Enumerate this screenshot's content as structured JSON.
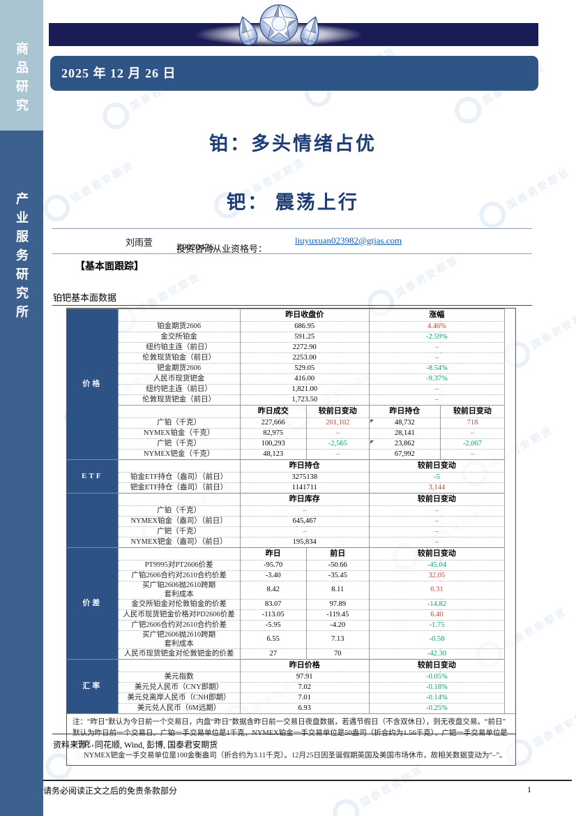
{
  "sidebar": {
    "top_label": "商品研究",
    "bottom_label": "产业服务研究所"
  },
  "header": {
    "date": "2025 年 12 月 26 日"
  },
  "titles": {
    "line1": "铂：多头情绪占优",
    "line2": "钯： 震荡上行"
  },
  "author": {
    "name": "刘雨萱",
    "license_label": "投资咨询从业资格号：",
    "license_no": "Z0020476",
    "email": "liuyuxuan023982@gtjas.com"
  },
  "section_header": "【基本面跟踪】",
  "watermark_text": "国泰君安期货",
  "source_line": "资料来源：同花顺, Wind, 彭博, 国泰君安期货",
  "footer": {
    "disclaimer": "请务必阅读正文之后的免责条款部分",
    "page_number": "1"
  },
  "colors": {
    "band_navy": "#1a1c55",
    "date_box_blue": "#2f5486",
    "sidebar_light": "#aac5d2",
    "sidebar_dark": "#3d618f",
    "table_section_blue": "#2d5386",
    "up_red": "#c9403a",
    "down_green": "#00a66d",
    "link_blue": "#0b5cc4",
    "title_blue": "#1e3c74"
  },
  "table": {
    "title": "铂钯基本面数据",
    "sections": [
      {
        "label": "价格",
        "blocks": [
          {
            "header": [
              {
                "t": "昨日收盘价",
                "s": 2
              },
              {
                "t": "涨幅",
                "s": 2
              }
            ],
            "rows": [
              {
                "label": "铂金期货2606",
                "cells": [
                  {
                    "t": "686.95",
                    "s": 2
                  },
                  {
                    "t": "4.46%",
                    "s": 2,
                    "c": "red"
                  }
                ]
              },
              {
                "label": "金交所铂金",
                "cells": [
                  {
                    "t": "591.25",
                    "s": 2
                  },
                  {
                    "t": "-2.59%",
                    "s": 2,
                    "c": "green"
                  }
                ]
              },
              {
                "label": "纽约铂主连（前日）",
                "cells": [
                  {
                    "t": "2272.90",
                    "s": 2
                  },
                  {
                    "t": "–",
                    "s": 2,
                    "c": "red"
                  }
                ]
              },
              {
                "label": "伦敦现货铂金（前日）",
                "cells": [
                  {
                    "t": "2253.00",
                    "s": 2
                  },
                  {
                    "t": "–",
                    "s": 2,
                    "c": "red"
                  }
                ]
              },
              {
                "label": "钯金期货2606",
                "cells": [
                  {
                    "t": "529.05",
                    "s": 2
                  },
                  {
                    "t": "-8.54%",
                    "s": 2,
                    "c": "green"
                  }
                ]
              },
              {
                "label": "人民币现货钯金",
                "cells": [
                  {
                    "t": "416.00",
                    "s": 2
                  },
                  {
                    "t": "-9.37%",
                    "s": 2,
                    "c": "green"
                  }
                ]
              },
              {
                "label": "纽约钯主连（前日）",
                "cells": [
                  {
                    "t": "1,821.00",
                    "s": 2
                  },
                  {
                    "t": "–",
                    "s": 2,
                    "c": "red"
                  }
                ]
              },
              {
                "label": "伦敦现货钯金（前日）",
                "cells": [
                  {
                    "t": "1,723.50",
                    "s": 2
                  },
                  {
                    "t": "–",
                    "s": 2,
                    "c": "red"
                  }
                ]
              }
            ]
          },
          {
            "header": [
              {
                "t": "昨日成交"
              },
              {
                "t": "较前日变动"
              },
              {
                "t": "昨日持仓"
              },
              {
                "t": "较前日变动"
              }
            ],
            "rows": [
              {
                "label": "广铂（千克）",
                "cells": [
                  {
                    "t": "227,666"
                  },
                  {
                    "t": "201,102",
                    "c": "red"
                  },
                  {
                    "t": "48,732",
                    "m": true
                  },
                  {
                    "t": "718",
                    "c": "red"
                  }
                ]
              },
              {
                "label": "NYMEX铂金（千克）",
                "cells": [
                  {
                    "t": "82,975"
                  },
                  {
                    "t": "–",
                    "c": "red"
                  },
                  {
                    "t": "28,141"
                  },
                  {
                    "t": "–",
                    "c": "red"
                  }
                ]
              },
              {
                "label": "广钯（千克）",
                "cells": [
                  {
                    "t": "100,293"
                  },
                  {
                    "t": "-2,565",
                    "c": "green"
                  },
                  {
                    "t": "23,862",
                    "m": true
                  },
                  {
                    "t": "-2,067",
                    "c": "green"
                  }
                ]
              },
              {
                "label": "NYMEX钯金（千克）",
                "cells": [
                  {
                    "t": "48,123"
                  },
                  {
                    "t": "–",
                    "c": "red"
                  },
                  {
                    "t": "67,992"
                  },
                  {
                    "t": "–",
                    "c": "red"
                  }
                ]
              }
            ]
          }
        ]
      },
      {
        "label": "ETF",
        "blocks": [
          {
            "header": [
              {
                "t": "昨日持仓",
                "s": 2
              },
              {
                "t": "较前日变动",
                "s": 2
              }
            ],
            "rows": [
              {
                "label": "铂金ETF持仓（盎司）（前日）",
                "cells": [
                  {
                    "t": "3275138",
                    "s": 2
                  },
                  {
                    "t": "-5",
                    "s": 2,
                    "c": "green"
                  }
                ]
              },
              {
                "label": "钯金ETF持仓（盎司）（前日）",
                "cells": [
                  {
                    "t": "1141711",
                    "s": 2
                  },
                  {
                    "t": "3,144",
                    "s": 2,
                    "c": "red"
                  }
                ]
              }
            ]
          }
        ]
      },
      {
        "label": "",
        "blocks": [
          {
            "header": [
              {
                "t": "昨日库存",
                "s": 2
              },
              {
                "t": "较前日变动",
                "s": 2
              }
            ],
            "rows": [
              {
                "label": "广铂（千克）",
                "cells": [
                  {
                    "t": "–",
                    "s": 2,
                    "c": "red"
                  },
                  {
                    "t": "–",
                    "s": 2,
                    "c": "red"
                  }
                ]
              },
              {
                "label": "NYMEX铂金（盎司）（前日）",
                "cells": [
                  {
                    "t": "645,467",
                    "s": 2
                  },
                  {
                    "t": "–",
                    "s": 2,
                    "c": "red"
                  }
                ]
              },
              {
                "label": "广钯（千克）",
                "cells": [
                  {
                    "t": "–",
                    "s": 2,
                    "c": "red"
                  },
                  {
                    "t": "–",
                    "s": 2,
                    "c": "red"
                  }
                ]
              },
              {
                "label": "NYMEX钯金（盎司）（前日）",
                "cells": [
                  {
                    "t": "195,834",
                    "s": 2
                  },
                  {
                    "t": "–",
                    "s": 2,
                    "c": "red"
                  }
                ]
              }
            ]
          }
        ]
      },
      {
        "label": "价差",
        "blocks": [
          {
            "header": [
              {
                "t": "昨日"
              },
              {
                "t": "前日"
              },
              {
                "t": "较前日变动",
                "s": 2
              }
            ],
            "rows": [
              {
                "label": "PT9995对PT2606价差",
                "cells": [
                  {
                    "t": "-95.70"
                  },
                  {
                    "t": "-50.66"
                  },
                  {
                    "t": "-45.04",
                    "s": 2,
                    "c": "green"
                  }
                ]
              },
              {
                "label": "广铂2606合约对2610合约价差",
                "cells": [
                  {
                    "t": "-3.40"
                  },
                  {
                    "t": "-35.45"
                  },
                  {
                    "t": "32.05",
                    "s": 2,
                    "c": "red"
                  }
                ]
              },
              {
                "label": "买广铂2606抛2610跨期\n套利成本",
                "cells": [
                  {
                    "t": "8.42"
                  },
                  {
                    "t": "8.11"
                  },
                  {
                    "t": "0.31",
                    "s": 2,
                    "c": "red"
                  }
                ]
              },
              {
                "label": "金交所铂金对伦敦铂金的价差",
                "cells": [
                  {
                    "t": "83.07"
                  },
                  {
                    "t": "97.89"
                  },
                  {
                    "t": "-14.82",
                    "s": 2,
                    "c": "green"
                  }
                ]
              },
              {
                "label": "人民币现货钯金价格对PD2606价差",
                "cells": [
                  {
                    "t": "-113.05"
                  },
                  {
                    "t": "-119.45"
                  },
                  {
                    "t": "6.40",
                    "s": 2,
                    "c": "red"
                  }
                ]
              },
              {
                "label": "广钯2606合约对2610合约价差",
                "cells": [
                  {
                    "t": "-5.95"
                  },
                  {
                    "t": "-4.20"
                  },
                  {
                    "t": "-1.75",
                    "s": 2,
                    "c": "green"
                  }
                ]
              },
              {
                "label": "买广钯2606抛2610跨期\n套利成本",
                "cells": [
                  {
                    "t": "6.55"
                  },
                  {
                    "t": "7.13"
                  },
                  {
                    "t": "-0.58",
                    "s": 2,
                    "c": "green"
                  }
                ]
              },
              {
                "label": "人民币现货钯金对伦敦钯金的价差",
                "cells": [
                  {
                    "t": "27"
                  },
                  {
                    "t": "70"
                  },
                  {
                    "t": "-42.30",
                    "s": 2,
                    "c": "green"
                  }
                ]
              }
            ]
          }
        ]
      },
      {
        "label": "汇率",
        "blocks": [
          {
            "header": [
              {
                "t": "昨日价格",
                "s": 2
              },
              {
                "t": "较前日变动",
                "s": 2
              }
            ],
            "rows": [
              {
                "label": "美元指数",
                "cells": [
                  {
                    "t": "97.91",
                    "s": 2
                  },
                  {
                    "t": "-0.05%",
                    "s": 2,
                    "c": "green"
                  }
                ]
              },
              {
                "label": "美元兑人民币（CNY即期）",
                "cells": [
                  {
                    "t": "7.02",
                    "s": 2
                  },
                  {
                    "t": "-0.18%",
                    "s": 2,
                    "c": "green"
                  }
                ]
              },
              {
                "label": "美元兑离岸人民币（CNH即期）",
                "cells": [
                  {
                    "t": "7.01",
                    "s": 2
                  },
                  {
                    "t": "-0.14%",
                    "s": 2,
                    "c": "green"
                  }
                ]
              },
              {
                "label": "美元兑人民币（6M远期）",
                "cells": [
                  {
                    "t": "6.93",
                    "s": 2
                  },
                  {
                    "t": "-0.25%",
                    "s": 2,
                    "c": "green"
                  }
                ]
              }
            ]
          }
        ]
      }
    ],
    "note_lines": [
      "注：“昨日”默认为今日前一个交易日，内盘“昨日”数据含昨日前一交易日夜盘数据，若遇节假日（不含双休日），则无夜盘交易。“前日”",
      "默认为昨日前一个交易日。广铂一手交易单位是1千克，NYMEX铂金一手交易单位是50盎司（折合约为1.56千克），广钯一手交易单位是1千克，",
      "NYMEX钯金一手交易单位是100金衡盎司（折合约为3.11千克）。12月25日因圣诞假期英国及美国市场休市，故相关数据变动为“–”。"
    ]
  }
}
